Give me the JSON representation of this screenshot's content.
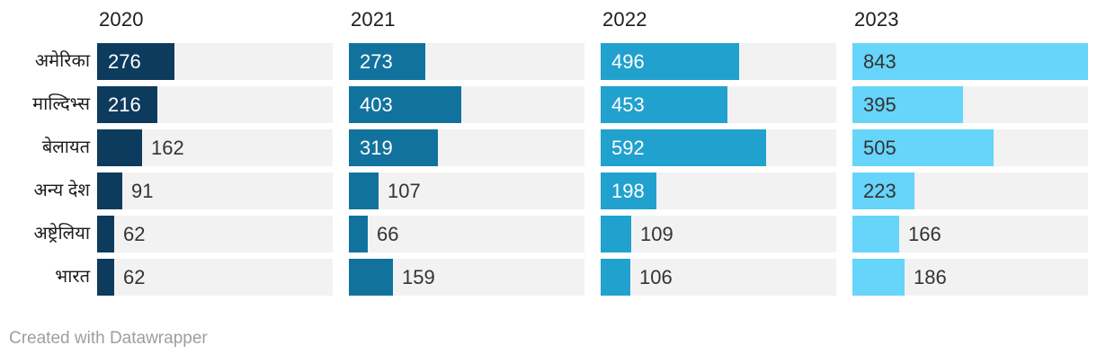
{
  "chart_data": {
    "type": "bar",
    "orientation": "horizontal",
    "title": "",
    "categories": [
      "अमेरिका",
      "माल्दिभ्स",
      "बेलायत",
      "अन्य देश",
      "अष्ट्रेलिया",
      "भारत"
    ],
    "series": [
      {
        "name": "2020",
        "color": "#0d3b5e",
        "inside_label_color": "#ffffff",
        "values": [
          276,
          216,
          162,
          91,
          62,
          62
        ]
      },
      {
        "name": "2021",
        "color": "#12729e",
        "inside_label_color": "#ffffff",
        "values": [
          273,
          403,
          319,
          107,
          66,
          159
        ]
      },
      {
        "name": "2022",
        "color": "#21a1ce",
        "inside_label_color": "#ffffff",
        "values": [
          496,
          453,
          592,
          198,
          109,
          106
        ]
      },
      {
        "name": "2023",
        "color": "#67d4fa",
        "inside_label_color": "#333333",
        "values": [
          843,
          395,
          505,
          223,
          166,
          186
        ]
      }
    ],
    "value_axis_max": 843,
    "grid": false,
    "legend_position": "column-headers",
    "track_color": "#f2f2f2",
    "outside_label_color": "#333333",
    "header_text_color": "#1d1d1d",
    "row_label_color": "#1d1d1d"
  },
  "footer": {
    "credit": "Created with Datawrapper"
  }
}
